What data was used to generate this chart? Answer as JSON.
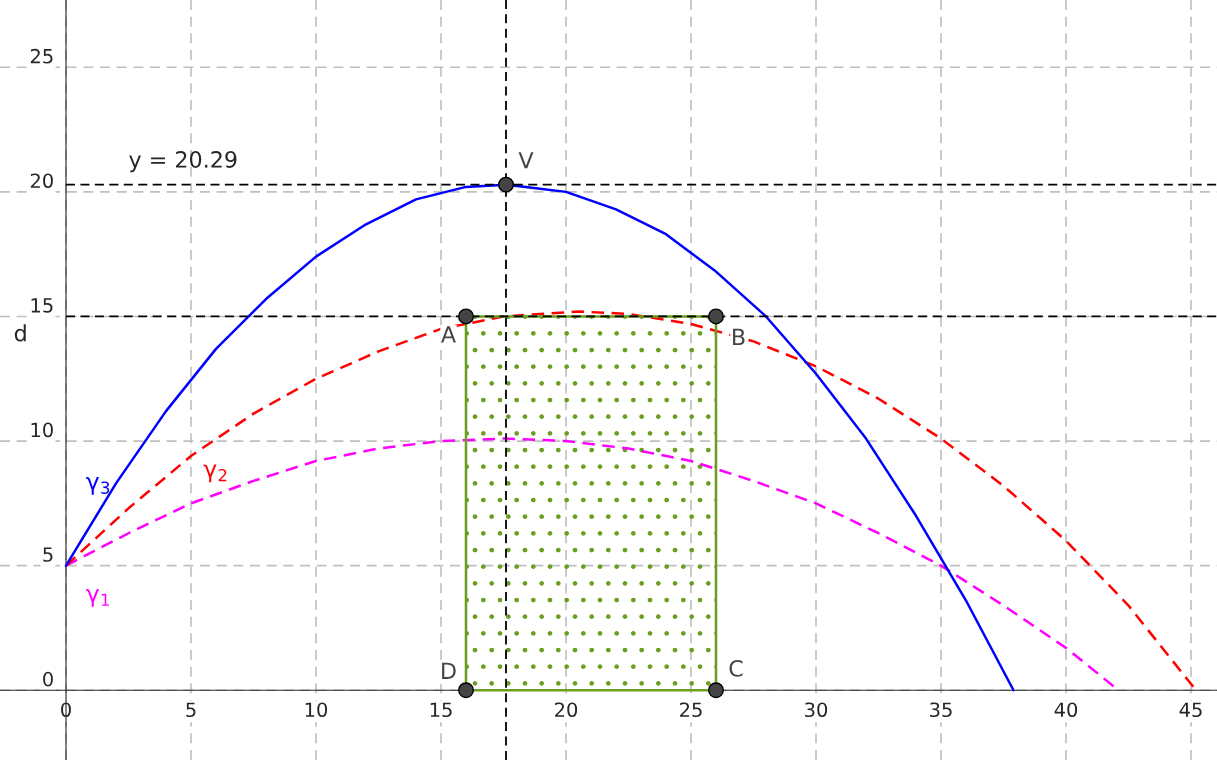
{
  "chart_data": {
    "type": "line",
    "ylabel": "d",
    "xlim": [
      -2.64,
      46.04
    ],
    "ylim": [
      -2.8,
      27.7
    ],
    "xticks": [
      0,
      5,
      10,
      15,
      20,
      25,
      30,
      35,
      40,
      45
    ],
    "yticks": [
      0,
      5,
      10,
      15,
      20,
      25
    ],
    "grid": true,
    "series": [
      {
        "name": "γ$_{1}$",
        "color": "#ff00ff",
        "line_style": "dashed",
        "x": [
          0,
          2.5,
          5,
          7.5,
          10,
          12.5,
          15,
          17.5,
          20,
          22.5,
          25,
          27.5,
          30,
          32.5,
          35,
          37.5,
          40,
          42.1
        ],
        "values": [
          5.0,
          6.3,
          7.5,
          8.4,
          9.2,
          9.7,
          10.0,
          10.1,
          10.0,
          9.7,
          9.2,
          8.4,
          7.5,
          6.3,
          5.0,
          3.4,
          1.7,
          0.0
        ]
      },
      {
        "name": "γ$_{2}$",
        "color": "#ff0000",
        "line_style": "dashed",
        "x": [
          0,
          2.5,
          5,
          7.5,
          10,
          12.5,
          15,
          17.5,
          20.5,
          22.5,
          25,
          27.5,
          30,
          32.5,
          35,
          37.5,
          40,
          42.5,
          45.2
        ],
        "values": [
          5.0,
          7.3,
          9.4,
          11.1,
          12.5,
          13.6,
          14.5,
          15.0,
          15.2,
          15.1,
          14.7,
          14.0,
          13.0,
          11.7,
          10.1,
          8.2,
          6.0,
          3.4,
          0.0
        ]
      },
      {
        "name": "γ$_{3}$",
        "color": "#0000ff",
        "line_style": "solid",
        "x": [
          0,
          2,
          4,
          6,
          8,
          10,
          12,
          14,
          16,
          17.6,
          20,
          22,
          24,
          26,
          28,
          30,
          32,
          34,
          36,
          37.9
        ],
        "values": [
          5.0,
          8.3,
          11.2,
          13.7,
          15.7,
          17.4,
          18.7,
          19.7,
          20.2,
          20.29,
          20.0,
          19.3,
          18.3,
          16.8,
          15.0,
          12.7,
          10.1,
          7.0,
          3.6,
          0.0
        ]
      },
      {
        "type": "area",
        "color": "#6b9e1f",
        "x": [
          16,
          26
        ],
        "values": [
          15,
          15
        ]
      },
      {
        "type": "scatter",
        "color": "#444444",
        "marker": "circle",
        "x": [
          16,
          26,
          26,
          16,
          17.6
        ],
        "values": [
          15,
          15,
          0,
          0,
          20.29
        ]
      }
    ],
    "ref_lines": [
      {
        "axis": "y",
        "value": 20.29,
        "label": "y = 20.29",
        "color": "#000000",
        "line_style": "dashed"
      },
      {
        "axis": "y",
        "value": 15,
        "color": "#000000",
        "line_style": "dashed"
      },
      {
        "axis": "x",
        "value": 17.6,
        "color": "#000000",
        "line_style": "dashed"
      }
    ],
    "annotations": [
      {
        "text": "A",
        "x": 16,
        "y": 15
      },
      {
        "text": "B",
        "x": 26,
        "y": 15
      },
      {
        "text": "C",
        "x": 26,
        "y": 0
      },
      {
        "text": "D",
        "x": 16,
        "y": 0
      },
      {
        "text": "V",
        "x": 17.6,
        "y": 20.29
      }
    ]
  }
}
